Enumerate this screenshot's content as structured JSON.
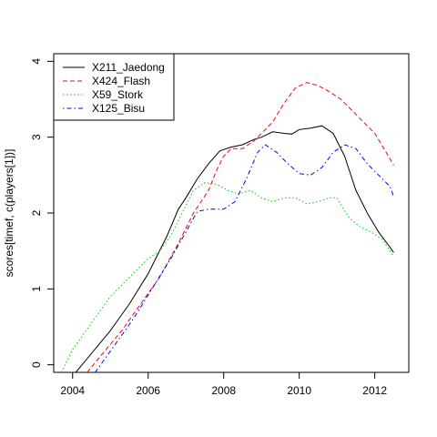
{
  "chart_data": {
    "type": "line",
    "title": "",
    "xlabel": "",
    "ylabel": "scores[timef, c(players[1])]",
    "xlim": [
      2003.5,
      2012.9
    ],
    "ylim": [
      -0.1,
      4.1
    ],
    "xticks": [
      2004,
      2006,
      2008,
      2010,
      2012
    ],
    "yticks": [
      0,
      1,
      2,
      3,
      4
    ],
    "grid": false,
    "legend_position": "top-left",
    "series": [
      {
        "name": "X211_Jaedong",
        "color": "#000000",
        "dash": "solid",
        "points": [
          [
            2003.7,
            -0.4
          ],
          [
            2004.0,
            -0.15
          ],
          [
            2004.5,
            0.15
          ],
          [
            2005.0,
            0.45
          ],
          [
            2005.5,
            0.8
          ],
          [
            2006.0,
            1.2
          ],
          [
            2006.5,
            1.7
          ],
          [
            2006.8,
            2.05
          ],
          [
            2007.0,
            2.2
          ],
          [
            2007.3,
            2.45
          ],
          [
            2007.6,
            2.65
          ],
          [
            2007.9,
            2.82
          ],
          [
            2008.2,
            2.87
          ],
          [
            2008.5,
            2.9
          ],
          [
            2008.8,
            2.97
          ],
          [
            2009.0,
            3.0
          ],
          [
            2009.3,
            3.07
          ],
          [
            2009.6,
            3.05
          ],
          [
            2009.8,
            3.04
          ],
          [
            2010.0,
            3.1
          ],
          [
            2010.3,
            3.12
          ],
          [
            2010.6,
            3.15
          ],
          [
            2010.9,
            3.05
          ],
          [
            2011.2,
            2.75
          ],
          [
            2011.5,
            2.3
          ],
          [
            2011.8,
            2.0
          ],
          [
            2012.1,
            1.75
          ],
          [
            2012.4,
            1.55
          ],
          [
            2012.5,
            1.48
          ]
        ]
      },
      {
        "name": "X424_Flash",
        "color": "#ff0000",
        "dash": "dashed",
        "points": [
          [
            2003.9,
            -0.4
          ],
          [
            2004.3,
            -0.15
          ],
          [
            2004.8,
            0.15
          ],
          [
            2005.3,
            0.45
          ],
          [
            2005.8,
            0.8
          ],
          [
            2006.3,
            1.15
          ],
          [
            2006.8,
            1.6
          ],
          [
            2007.2,
            2.0
          ],
          [
            2007.6,
            2.3
          ],
          [
            2007.8,
            2.55
          ],
          [
            2008.0,
            2.75
          ],
          [
            2008.2,
            2.85
          ],
          [
            2008.5,
            2.85
          ],
          [
            2008.8,
            2.95
          ],
          [
            2009.0,
            3.05
          ],
          [
            2009.3,
            3.2
          ],
          [
            2009.6,
            3.45
          ],
          [
            2009.9,
            3.65
          ],
          [
            2010.2,
            3.72
          ],
          [
            2010.5,
            3.68
          ],
          [
            2010.8,
            3.6
          ],
          [
            2011.1,
            3.5
          ],
          [
            2011.4,
            3.35
          ],
          [
            2011.7,
            3.2
          ],
          [
            2012.0,
            3.05
          ],
          [
            2012.3,
            2.8
          ],
          [
            2012.5,
            2.63
          ]
        ]
      },
      {
        "name": "X59_Stork",
        "color": "#00cc00",
        "dash": "dotted",
        "points": [
          [
            2003.7,
            -0.1
          ],
          [
            2004.0,
            0.2
          ],
          [
            2004.5,
            0.55
          ],
          [
            2005.0,
            0.9
          ],
          [
            2005.5,
            1.15
          ],
          [
            2006.0,
            1.4
          ],
          [
            2006.3,
            1.5
          ],
          [
            2006.6,
            1.7
          ],
          [
            2006.9,
            2.0
          ],
          [
            2007.2,
            2.3
          ],
          [
            2007.5,
            2.4
          ],
          [
            2007.8,
            2.38
          ],
          [
            2008.1,
            2.3
          ],
          [
            2008.4,
            2.25
          ],
          [
            2008.7,
            2.3
          ],
          [
            2009.0,
            2.2
          ],
          [
            2009.3,
            2.15
          ],
          [
            2009.6,
            2.2
          ],
          [
            2009.9,
            2.2
          ],
          [
            2010.2,
            2.12
          ],
          [
            2010.5,
            2.15
          ],
          [
            2010.8,
            2.2
          ],
          [
            2011.0,
            2.2
          ],
          [
            2011.3,
            1.95
          ],
          [
            2011.6,
            1.82
          ],
          [
            2011.9,
            1.75
          ],
          [
            2012.2,
            1.65
          ],
          [
            2012.5,
            1.43
          ]
        ]
      },
      {
        "name": "X125_Bisu",
        "color": "#0000ff",
        "dash": "dashdot",
        "points": [
          [
            2004.2,
            -0.4
          ],
          [
            2004.6,
            -0.1
          ],
          [
            2005.1,
            0.25
          ],
          [
            2005.6,
            0.6
          ],
          [
            2006.1,
            1.0
          ],
          [
            2006.6,
            1.4
          ],
          [
            2007.0,
            1.75
          ],
          [
            2007.3,
            2.02
          ],
          [
            2007.6,
            2.05
          ],
          [
            2008.0,
            2.05
          ],
          [
            2008.3,
            2.15
          ],
          [
            2008.6,
            2.45
          ],
          [
            2008.9,
            2.8
          ],
          [
            2009.1,
            2.9
          ],
          [
            2009.4,
            2.8
          ],
          [
            2009.7,
            2.65
          ],
          [
            2010.0,
            2.52
          ],
          [
            2010.3,
            2.5
          ],
          [
            2010.6,
            2.6
          ],
          [
            2010.9,
            2.8
          ],
          [
            2011.2,
            2.9
          ],
          [
            2011.5,
            2.85
          ],
          [
            2011.8,
            2.65
          ],
          [
            2012.1,
            2.5
          ],
          [
            2012.4,
            2.35
          ],
          [
            2012.5,
            2.22
          ]
        ]
      }
    ]
  }
}
